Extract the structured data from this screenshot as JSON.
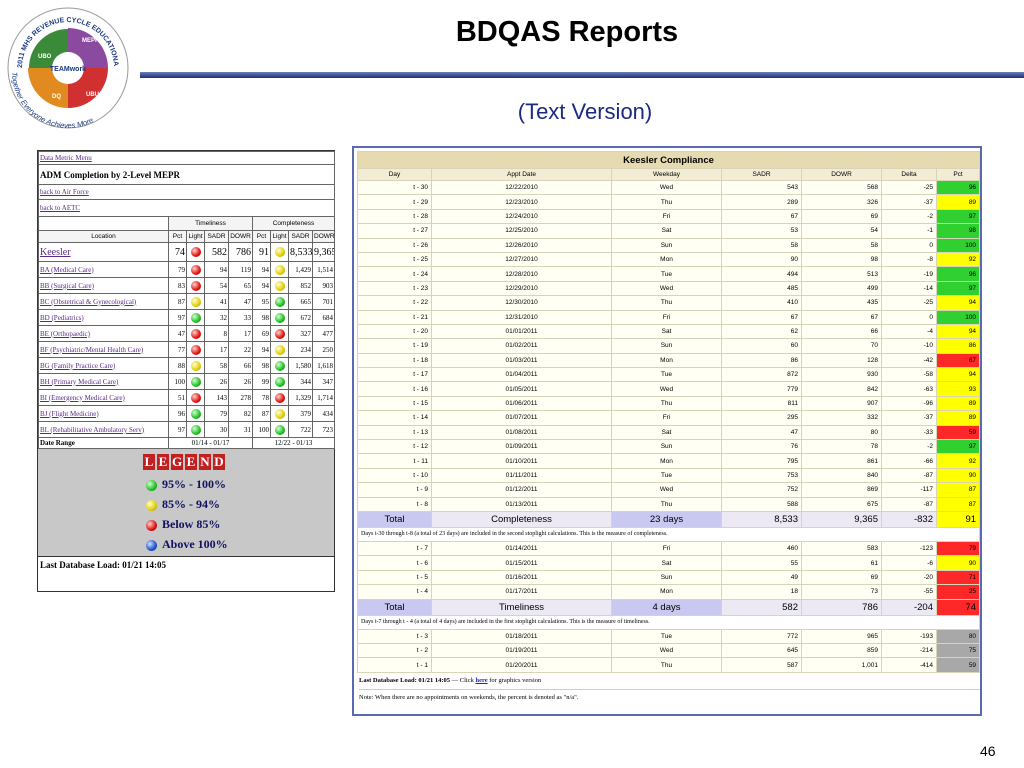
{
  "header": {
    "title": "BDQAS Reports",
    "subtitle": "(Text Version)",
    "page_number": "46"
  },
  "logo": {
    "ring": "2011 MHS REVENUE CYCLE EDUCATIONAL CONFERENCE",
    "center": "TEAMwork",
    "motto": "Together Everyone Achieves More",
    "segments": [
      "MEPR",
      "UBU",
      "DQ",
      "UBO"
    ]
  },
  "left_panel": {
    "menu": "Data Metric Menu",
    "heading": "ADM Completion by 2-Level MEPR",
    "links": [
      "back to Air Force",
      "back to AETC"
    ],
    "groups": [
      "Timeliness",
      "Completeness"
    ],
    "columns": [
      "Location",
      "Pct",
      "Light",
      "SADR",
      "DOWR",
      "Pct",
      "Light",
      "SADR",
      "DOWR"
    ],
    "rows": [
      [
        "Keesler",
        74,
        582,
        786,
        91,
        "8,533",
        "9,365"
      ],
      [
        "BA (Medical Care)",
        79,
        94,
        119,
        94,
        "1,429",
        "1,514"
      ],
      [
        "BB (Surgical Care)",
        83,
        54,
        65,
        94,
        852,
        903
      ],
      [
        "BC (Obstetrical & Gynecological)",
        87,
        41,
        47,
        95,
        665,
        701
      ],
      [
        "BD (Pediatrics)",
        97,
        32,
        33,
        98,
        672,
        684
      ],
      [
        "BE (Orthopaedic)",
        47,
        8,
        17,
        69,
        327,
        477
      ],
      [
        "BF (Psychiatric/Mental Health Care)",
        77,
        17,
        22,
        94,
        234,
        250
      ],
      [
        "BG (Family Practice Care)",
        88,
        58,
        66,
        98,
        "1,580",
        "1,618"
      ],
      [
        "BH (Primary Medical Care)",
        100,
        26,
        26,
        99,
        344,
        347
      ],
      [
        "BI (Emergency Medical Care)",
        51,
        143,
        278,
        78,
        "1,329",
        "1,714"
      ],
      [
        "BJ (Flight Medicine)",
        96,
        79,
        82,
        87,
        379,
        434
      ],
      [
        "BL (Rehabilitative Ambulatory Serv)",
        97,
        30,
        31,
        100,
        722,
        723
      ]
    ],
    "lights": [
      [
        "red",
        "yellow"
      ],
      [
        "red",
        "yellow"
      ],
      [
        "red",
        "yellow"
      ],
      [
        "yellow",
        "green"
      ],
      [
        "green",
        "green"
      ],
      [
        "red",
        "red"
      ],
      [
        "red",
        "yellow"
      ],
      [
        "yellow",
        "green"
      ],
      [
        "green",
        "green"
      ],
      [
        "red",
        "red"
      ],
      [
        "green",
        "yellow"
      ],
      [
        "green",
        "green"
      ]
    ],
    "date_range": [
      "Date Range",
      "01/14 - 01/17",
      "12/22 - 01/13"
    ],
    "legend": {
      "title": "LEGEND",
      "items": [
        {
          "label": "95% - 100%",
          "color": "green"
        },
        {
          "label": "85% - 94%",
          "color": "yellow"
        },
        {
          "label": "Below 85%",
          "color": "red"
        },
        {
          "label": "Above 100%",
          "color": "blue"
        }
      ]
    },
    "last_load": "Last Database Load: 01/21 14:05"
  },
  "right_panel": {
    "title": "Keesler Compliance",
    "columns": [
      "Day",
      "Appt Date",
      "Weekday",
      "SADR",
      "DOWR",
      "Delta",
      "Pct"
    ],
    "sections": [
      {
        "rows": [
          [
            "t - 30",
            "12/22/2010",
            "Wed",
            543,
            568,
            -25,
            96,
            "green"
          ],
          [
            "t - 29",
            "12/23/2010",
            "Thu",
            289,
            326,
            -37,
            89,
            "yellow"
          ],
          [
            "t - 28",
            "12/24/2010",
            "Fri",
            67,
            69,
            -2,
            97,
            "green"
          ],
          [
            "t - 27",
            "12/25/2010",
            "Sat",
            53,
            54,
            -1,
            98,
            "green"
          ],
          [
            "t - 26",
            "12/26/2010",
            "Sun",
            58,
            58,
            0,
            100,
            "green"
          ],
          [
            "t - 25",
            "12/27/2010",
            "Mon",
            90,
            98,
            -8,
            92,
            "yellow"
          ],
          [
            "t - 24",
            "12/28/2010",
            "Tue",
            494,
            513,
            -19,
            96,
            "green"
          ],
          [
            "t - 23",
            "12/29/2010",
            "Wed",
            485,
            499,
            -14,
            97,
            "green"
          ],
          [
            "t - 22",
            "12/30/2010",
            "Thu",
            410,
            435,
            -25,
            94,
            "yellow"
          ],
          [
            "t - 21",
            "12/31/2010",
            "Fri",
            67,
            67,
            0,
            100,
            "green"
          ],
          [
            "t - 20",
            "01/01/2011",
            "Sat",
            62,
            66,
            -4,
            94,
            "yellow"
          ],
          [
            "t - 19",
            "01/02/2011",
            "Sun",
            60,
            70,
            -10,
            86,
            "yellow"
          ],
          [
            "t - 18",
            "01/03/2011",
            "Mon",
            86,
            128,
            -42,
            67,
            "red"
          ],
          [
            "t - 17",
            "01/04/2011",
            "Tue",
            872,
            930,
            -58,
            94,
            "yellow"
          ],
          [
            "t - 16",
            "01/05/2011",
            "Wed",
            779,
            842,
            -63,
            93,
            "yellow"
          ],
          [
            "t - 15",
            "01/06/2011",
            "Thu",
            811,
            907,
            -96,
            89,
            "yellow"
          ],
          [
            "t - 14",
            "01/07/2011",
            "Fri",
            295,
            332,
            -37,
            89,
            "yellow"
          ],
          [
            "t - 13",
            "01/08/2011",
            "Sat",
            47,
            80,
            -33,
            59,
            "red"
          ],
          [
            "t - 12",
            "01/09/2011",
            "Sun",
            76,
            78,
            -2,
            97,
            "green"
          ],
          [
            "t - 11",
            "01/10/2011",
            "Mon",
            795,
            861,
            -66,
            92,
            "yellow"
          ],
          [
            "t - 10",
            "01/11/2011",
            "Tue",
            753,
            840,
            -87,
            90,
            "yellow"
          ],
          [
            "t - 9",
            "01/12/2011",
            "Wed",
            752,
            869,
            -117,
            87,
            "yellow"
          ],
          [
            "t - 8",
            "01/13/2011",
            "Thu",
            588,
            675,
            -87,
            87,
            "yellow"
          ]
        ],
        "total": [
          "Total",
          "Completeness",
          "23 days",
          "8,533",
          "9,365",
          -832,
          91,
          "yellow"
        ],
        "note": "Days t-30 through t-8 (a total of 23 days) are included in the second stoplight calculations. This is the measure of completeness."
      },
      {
        "rows": [
          [
            "t - 7",
            "01/14/2011",
            "Fri",
            460,
            583,
            -123,
            79,
            "red"
          ],
          [
            "t - 6",
            "01/15/2011",
            "Sat",
            55,
            61,
            -6,
            90,
            "yellow"
          ],
          [
            "t - 5",
            "01/16/2011",
            "Sun",
            49,
            69,
            -20,
            71,
            "red"
          ],
          [
            "t - 4",
            "01/17/2011",
            "Mon",
            18,
            73,
            -55,
            25,
            "red"
          ]
        ],
        "total": [
          "Total",
          "Timeliness",
          "4 days",
          582,
          786,
          -204,
          74,
          "red"
        ],
        "note": "Days t-7 through t - 4 (a total of 4 days) are included in the first stoplight calculations. This is the measure of timeliness."
      },
      {
        "rows": [
          [
            "t - 3",
            "01/18/2011",
            "Tue",
            772,
            965,
            -193,
            80,
            "gray"
          ],
          [
            "t - 2",
            "01/19/2011",
            "Wed",
            645,
            859,
            -214,
            75,
            "gray"
          ],
          [
            "t - 1",
            "01/20/2011",
            "Thu",
            587,
            "1,001",
            -414,
            59,
            "gray"
          ]
        ]
      }
    ],
    "footer": {
      "load": "Last Database Load: 01/21 14:05",
      "click_pre": "— Click",
      "link": "here",
      "click_post": "for graphics version",
      "note": "Note: When there are no appointments on weekends, the percent is denoted as \"n/a\"."
    }
  }
}
